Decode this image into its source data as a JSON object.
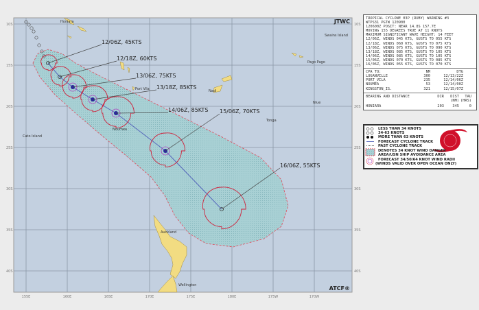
{
  "map": {
    "agency_label": "JTWC",
    "credit_label": "ATCF®",
    "lon_ticks": [
      "155E",
      "160E",
      "165E",
      "170E",
      "175E",
      "180E",
      "175W",
      "170W"
    ],
    "lat_ticks": [
      "10S",
      "15S",
      "20S",
      "25S",
      "30S",
      "35S",
      "40S"
    ],
    "places": [
      "Honiara",
      "Swains Island",
      "Pago Pago",
      "Port Vila",
      "Nadi",
      "Niue",
      "Tonga",
      "Noumea",
      "Cato Island",
      "Auckland",
      "Wellington"
    ],
    "forecast_labels": [
      "12/06Z, 45KTS",
      "12/18Z, 60KTS",
      "13/06Z, 75KTS",
      "13/18Z, 85KTS",
      "14/06Z, 85KTS",
      "15/06Z, 70KTS",
      "16/06Z, 55KTS"
    ],
    "colors": {
      "ocean": "#c3d0e0",
      "land": "#f2dc82",
      "danger_area": "#a8d0d4",
      "wind_radii": "#d0203a",
      "track": "#5566bb"
    }
  },
  "warning": {
    "lines": [
      "TROPICAL CYCLONE 03P (RUBY) WARNING #3",
      "WTPS31 PGTW 120900",
      "120600Z POSIT: NEAR 14.8S 157.7E",
      "MOVING 155 DEGREES TRUE AT 11 KNOTS",
      "MAXIMUM SIGNIFICANT WAVE HEIGHT: 14 FEET",
      "12/06Z, WINDS 045 KTS, GUSTS TO 055 KTS",
      "12/18Z, WINDS 060 KTS, GUSTS TO 075 KTS",
      "13/06Z, WINDS 075 KTS, GUSTS TO 090 KTS",
      "13/18Z, WINDS 085 KTS, GUSTS TO 105 KTS",
      "14/06Z, WINDS 085 KTS, GUSTS TO 105 KTS",
      "15/06Z, WINDS 070 KTS, GUSTS TO 085 KTS",
      "16/06Z, WINDS 055 KTS, GUSTS TO 070 KTS"
    ]
  },
  "cpa": {
    "headers": [
      "CPA TO:",
      "NM",
      "DTG"
    ],
    "rows": [
      [
        "LUGANVILLE",
        "300",
        "12/13/22Z"
      ],
      [
        "PORT_VILA",
        "235",
        "12/14/06Z"
      ],
      [
        "NOUMEA",
        "53",
        "12/14/00Z"
      ],
      [
        "KINGSTON_IS.",
        "321",
        "12/15/07Z"
      ]
    ]
  },
  "bearing": {
    "headers": [
      "BEARING AND DISTANCE",
      "DIR",
      "DIST",
      "TAU"
    ],
    "units": [
      "(NM)",
      "(HRS)"
    ],
    "rows": [
      [
        "HONIARA",
        "203",
        "345",
        "0"
      ]
    ]
  },
  "legend": {
    "items": [
      "LESS THAN 34 KNOTS",
      "34-63 KNOTS",
      "MORE THAN 63 KNOTS",
      "FORECAST CYCLONE TRACK",
      "PAST CYCLONE TRACK",
      "DENOTES 34 KNOT WIND DANGER",
      "AREA/USN SHIP AVOIDANCE AREA",
      "FORECAST 34/50/64 KNOT WIND RADII",
      "(WINDS VALID OVER OPEN OCEAN ONLY)"
    ]
  }
}
